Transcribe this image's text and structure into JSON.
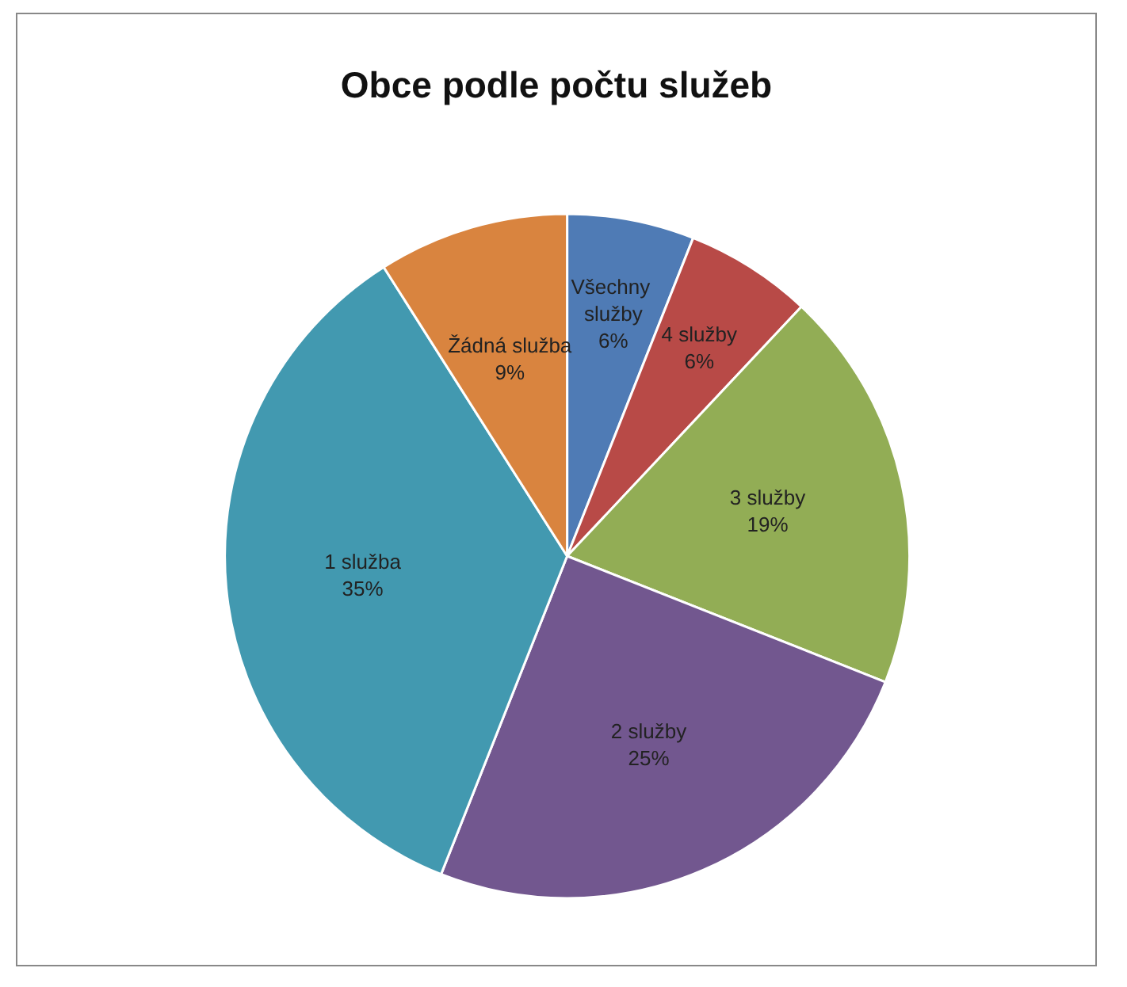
{
  "chart_data": {
    "type": "pie",
    "title": "Obce podle počtu služeb",
    "categories": [
      "Všechny služby",
      "4 služby",
      "3 služby",
      "2 služby",
      "1 služba",
      "Žádná služba"
    ],
    "values": [
      6,
      6,
      19,
      25,
      35,
      9
    ],
    "value_labels": [
      "6%",
      "6%",
      "19%",
      "25%",
      "35%",
      "9%"
    ],
    "colors": [
      "#4f7bb5",
      "#b84a47",
      "#92ad55",
      "#72578f",
      "#4299b0",
      "#d9843f"
    ],
    "legend": false
  }
}
